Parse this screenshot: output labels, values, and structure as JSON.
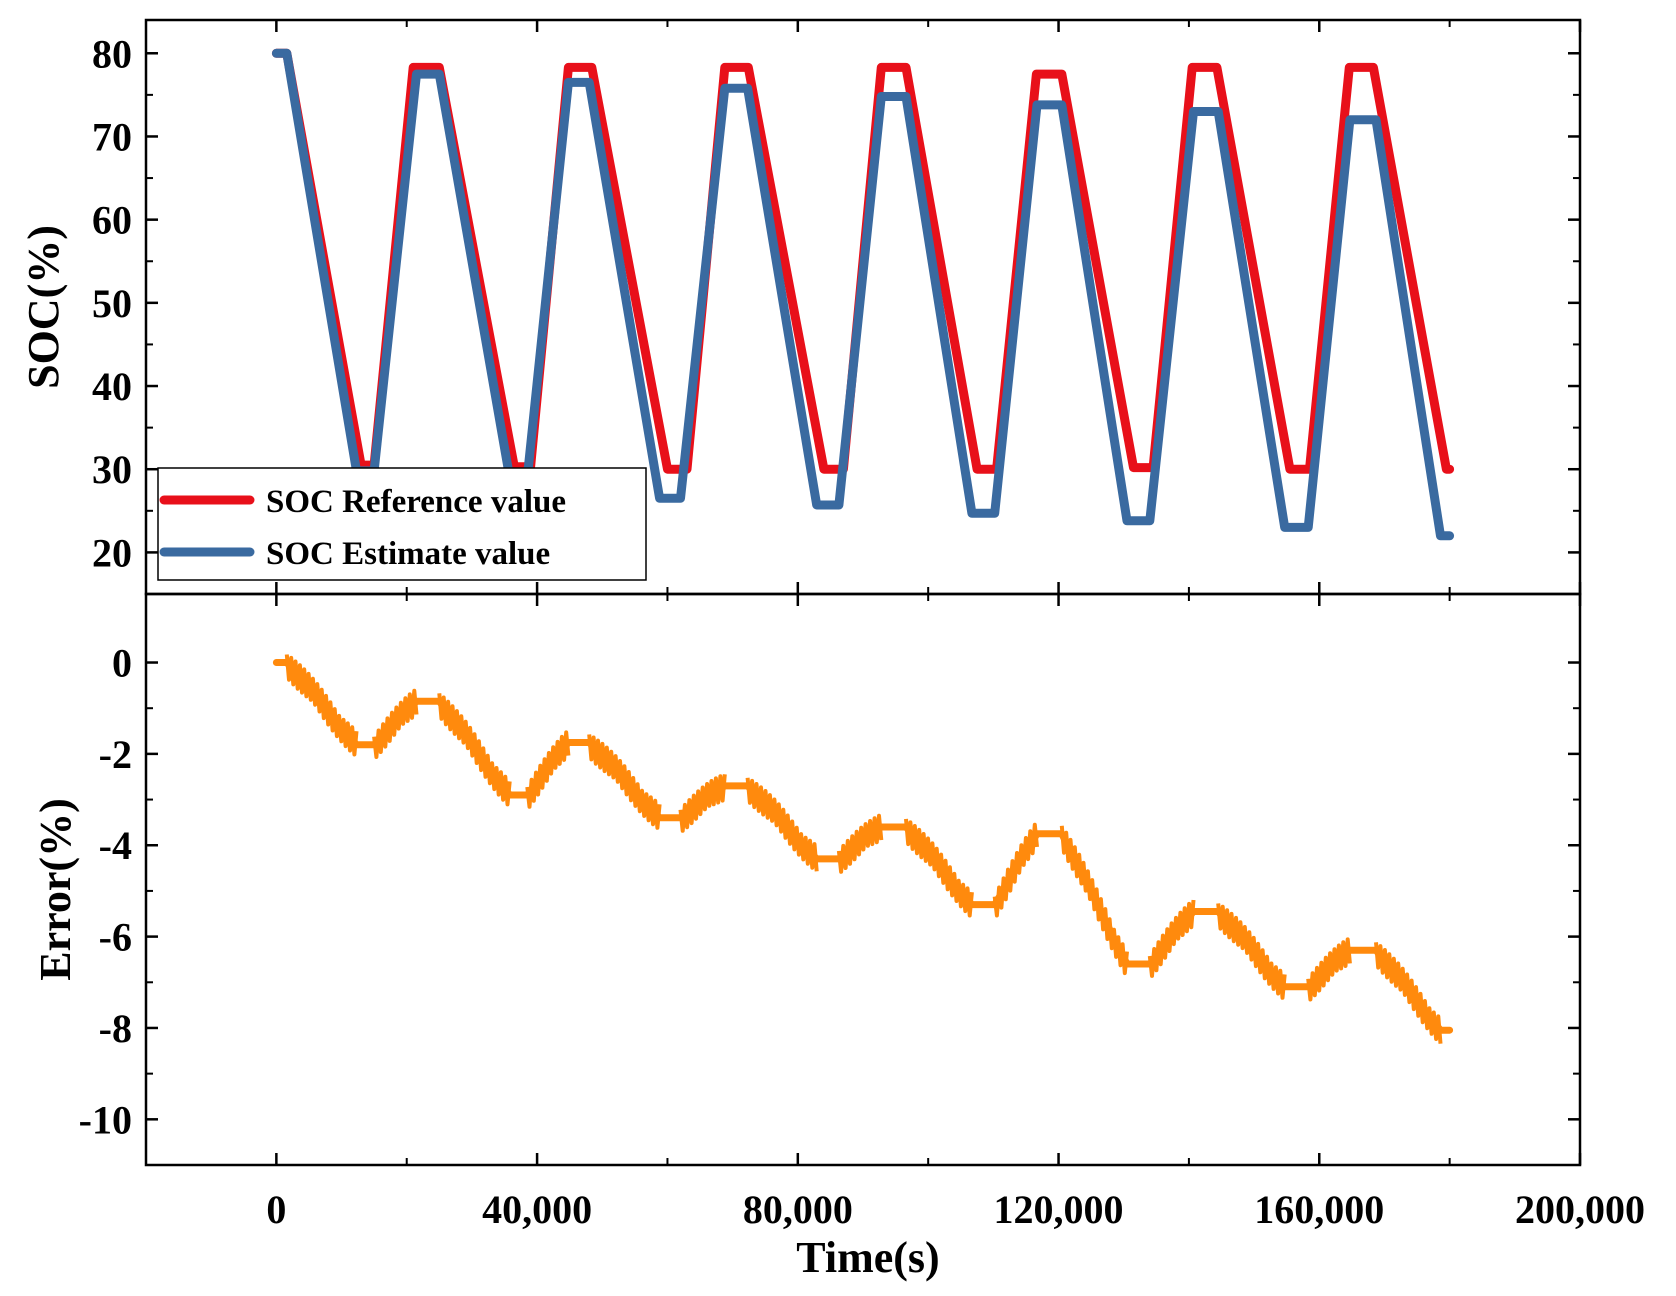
{
  "chart_data": [
    {
      "type": "line",
      "panel": "top",
      "ylabel": "SOC(%)",
      "xlabel": "",
      "xlim": [
        -20000,
        200000
      ],
      "ylim": [
        15,
        84
      ],
      "yticks": [
        "20",
        "30",
        "40",
        "50",
        "60",
        "70",
        "80"
      ],
      "legend": {
        "position": "bottom-left",
        "entries": [
          "SOC Reference value",
          "SOC Estimate value"
        ]
      },
      "series": [
        {
          "name": "SOC Reference value",
          "color": "#e8101a",
          "points": [
            [
              0,
              80
            ],
            [
              1600,
              80
            ],
            [
              13000,
              30.5
            ],
            [
              15000,
              30.5
            ],
            [
              21000,
              78.3
            ],
            [
              25000,
              78.3
            ],
            [
              36500,
              30.3
            ],
            [
              39000,
              30.3
            ],
            [
              44800,
              78.3
            ],
            [
              48400,
              78.3
            ],
            [
              60000,
              30
            ],
            [
              63000,
              30
            ],
            [
              68800,
              78.3
            ],
            [
              72400,
              78.3
            ],
            [
              84000,
              30
            ],
            [
              87000,
              30
            ],
            [
              92800,
              78.3
            ],
            [
              96600,
              78.3
            ],
            [
              107500,
              30
            ],
            [
              110500,
              30
            ],
            [
              116600,
              77.5
            ],
            [
              120500,
              77.5
            ],
            [
              131500,
              30.2
            ],
            [
              134500,
              30.2
            ],
            [
              140500,
              78.3
            ],
            [
              144300,
              78.3
            ],
            [
              155500,
              30
            ],
            [
              158500,
              30
            ],
            [
              164600,
              78.3
            ],
            [
              168300,
              78.3
            ],
            [
              179500,
              30
            ],
            [
              180000,
              30
            ]
          ]
        },
        {
          "name": "SOC Estimate value",
          "color": "#3a6aa0",
          "points": [
            [
              0,
              80
            ],
            [
              1600,
              80
            ],
            [
              12300,
              29.8
            ],
            [
              15000,
              29.8
            ],
            [
              21500,
              77.5
            ],
            [
              25000,
              77.5
            ],
            [
              35800,
              29
            ],
            [
              38500,
              29
            ],
            [
              44800,
              76.5
            ],
            [
              48000,
              76.5
            ],
            [
              58800,
              26.5
            ],
            [
              62000,
              26.5
            ],
            [
              68800,
              75.8
            ],
            [
              72300,
              75.8
            ],
            [
              82900,
              25.7
            ],
            [
              86300,
              25.7
            ],
            [
              92800,
              74.8
            ],
            [
              96600,
              74.8
            ],
            [
              106700,
              24.7
            ],
            [
              110200,
              24.7
            ],
            [
              116700,
              73.8
            ],
            [
              120500,
              73.8
            ],
            [
              130500,
              23.8
            ],
            [
              134000,
              23.8
            ],
            [
              140700,
              73
            ],
            [
              144500,
              73
            ],
            [
              154700,
              23
            ],
            [
              158300,
              23
            ],
            [
              164700,
              72
            ],
            [
              168700,
              72
            ],
            [
              178600,
              22
            ],
            [
              180000,
              22
            ]
          ]
        }
      ]
    },
    {
      "type": "line",
      "panel": "bottom",
      "ylabel": "Error(%)",
      "xlabel": "Time(s)",
      "xlim": [
        -20000,
        200000
      ],
      "ylim": [
        -11,
        1.5
      ],
      "xticks": [
        "0",
        "40,000",
        "80,000",
        "120,000",
        "160,000",
        "200,000"
      ],
      "yticks": [
        "0",
        "-2",
        "-4",
        "-6",
        "-8",
        "-10"
      ],
      "series": [
        {
          "name": "Error",
          "color": "#ff8a0d",
          "points": [
            [
              0,
              0
            ],
            [
              1600,
              0
            ],
            [
              12300,
              -1.8
            ],
            [
              15000,
              -1.8
            ],
            [
              21500,
              -0.85
            ],
            [
              25000,
              -0.85
            ],
            [
              35800,
              -2.9
            ],
            [
              38500,
              -2.9
            ],
            [
              44800,
              -1.75
            ],
            [
              48000,
              -1.75
            ],
            [
              58800,
              -3.4
            ],
            [
              62000,
              -3.4
            ],
            [
              68800,
              -2.7
            ],
            [
              72300,
              -2.7
            ],
            [
              82900,
              -4.3
            ],
            [
              86300,
              -4.3
            ],
            [
              92800,
              -3.6
            ],
            [
              96600,
              -3.6
            ],
            [
              106700,
              -5.3
            ],
            [
              110200,
              -5.3
            ],
            [
              116700,
              -3.75
            ],
            [
              120500,
              -3.75
            ],
            [
              130500,
              -6.6
            ],
            [
              134000,
              -6.6
            ],
            [
              140700,
              -5.45
            ],
            [
              144500,
              -5.45
            ],
            [
              154700,
              -7.1
            ],
            [
              158300,
              -7.1
            ],
            [
              164700,
              -6.3
            ],
            [
              168700,
              -6.3
            ],
            [
              178600,
              -8.05
            ],
            [
              180000,
              -8.05
            ]
          ]
        }
      ]
    }
  ]
}
